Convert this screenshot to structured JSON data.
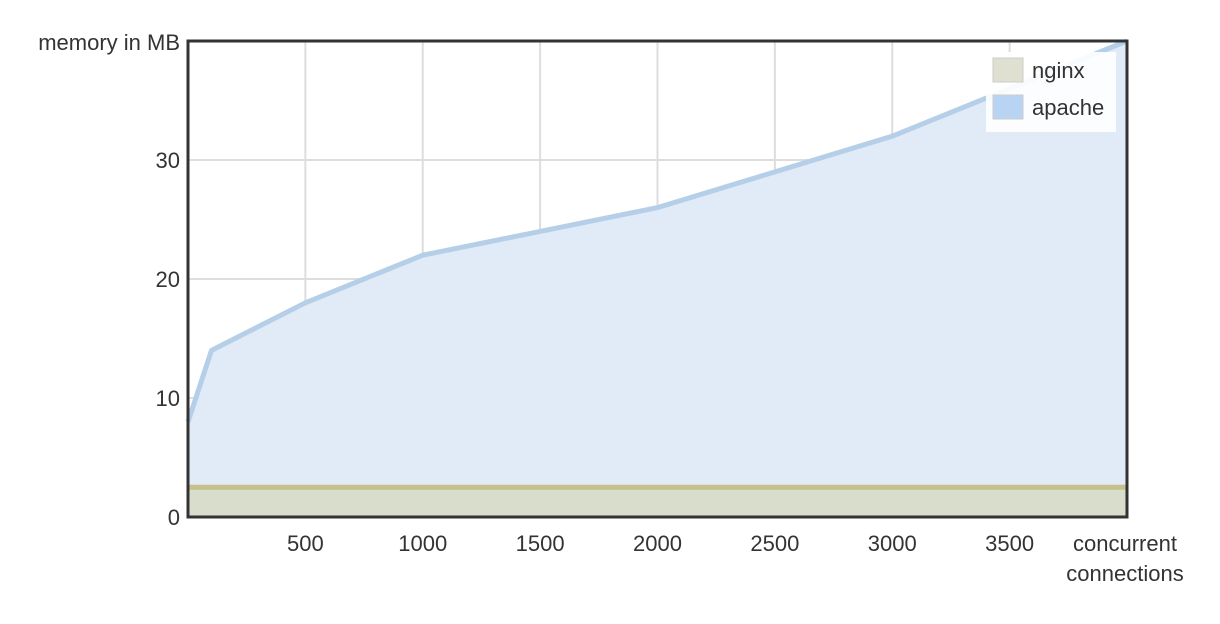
{
  "chart_data": {
    "type": "area",
    "ylabel": "memory in MB",
    "xlabel_lines": [
      "concurrent",
      "connections"
    ],
    "xlim": [
      0,
      4000
    ],
    "ylim": [
      0,
      40
    ],
    "x_ticks": [
      500,
      1000,
      1500,
      2000,
      2500,
      3000,
      3500
    ],
    "x_tick_labels": [
      "500",
      "1000",
      "1500",
      "2000",
      "2500",
      "3000",
      "3500"
    ],
    "y_ticks": [
      0,
      10,
      20,
      30
    ],
    "y_tick_labels": [
      "0",
      "10",
      "20",
      "30"
    ],
    "grid": true,
    "legend_position": "top-right",
    "series": [
      {
        "name": "nginx",
        "color": "#c8c08a",
        "fill": "#d8ddcc",
        "x": [
          0,
          4000
        ],
        "values": [
          2.5,
          2.5
        ]
      },
      {
        "name": "apache",
        "color": "#b6cfe8",
        "fill": "#e0ebf7",
        "x": [
          0,
          100,
          500,
          1000,
          1500,
          2000,
          2500,
          3000,
          3500,
          4000
        ],
        "values": [
          8,
          14,
          18,
          22,
          24,
          26,
          29,
          32,
          36,
          40
        ]
      }
    ],
    "legend_swatches": {
      "nginx": "#dfe0cf",
      "apache": "#b8d4f2"
    }
  }
}
